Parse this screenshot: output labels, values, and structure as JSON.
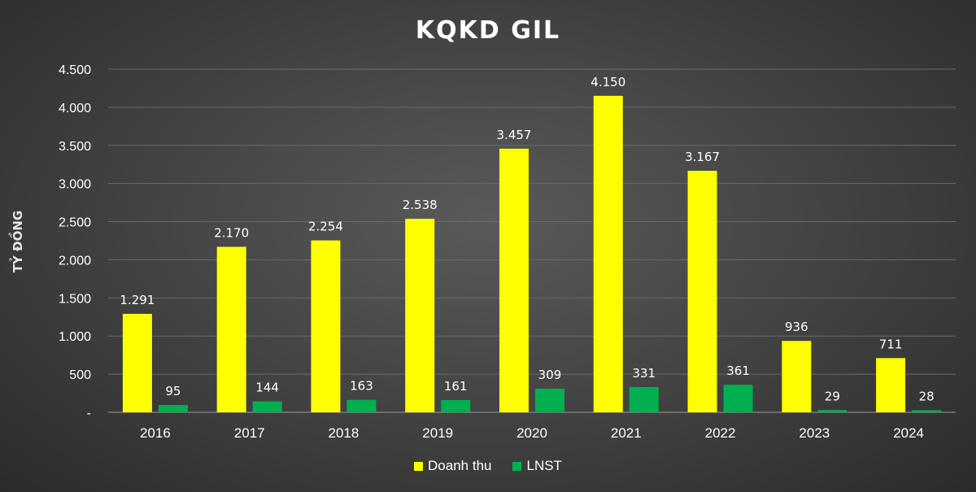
{
  "chart_data": {
    "type": "bar",
    "title": "KQKD GIL",
    "ylabel": "TỶ ĐỒNG",
    "xlabel": "",
    "categories": [
      "2016",
      "2017",
      "2018",
      "2019",
      "2020",
      "2021",
      "2022",
      "2023",
      "2024"
    ],
    "series": [
      {
        "name": "Doanh thu",
        "color": "#ffff00",
        "values": [
          1291,
          2170,
          2254,
          2538,
          3457,
          4150,
          3167,
          936,
          711
        ],
        "labels": [
          "1.291",
          "2.170",
          "2.254",
          "2.538",
          "3.457",
          "4.150",
          "3.167",
          "936",
          "711"
        ]
      },
      {
        "name": "LNST",
        "color": "#00b050",
        "values": [
          95,
          144,
          163,
          161,
          309,
          331,
          361,
          29,
          28
        ],
        "labels": [
          "95",
          "144",
          "163",
          "161",
          "309",
          "331",
          "361",
          "29",
          "28"
        ]
      }
    ],
    "ylim": [
      0,
      4500
    ],
    "yticks": [
      0,
      500,
      1000,
      1500,
      2000,
      2500,
      3000,
      3500,
      4000,
      4500
    ],
    "ytick_labels": [
      "-",
      "500",
      "1.000",
      "1.500",
      "2.000",
      "2.500",
      "3.000",
      "3.500",
      "4.000",
      "4.500"
    ],
    "grid": true,
    "legend_position": "bottom"
  }
}
